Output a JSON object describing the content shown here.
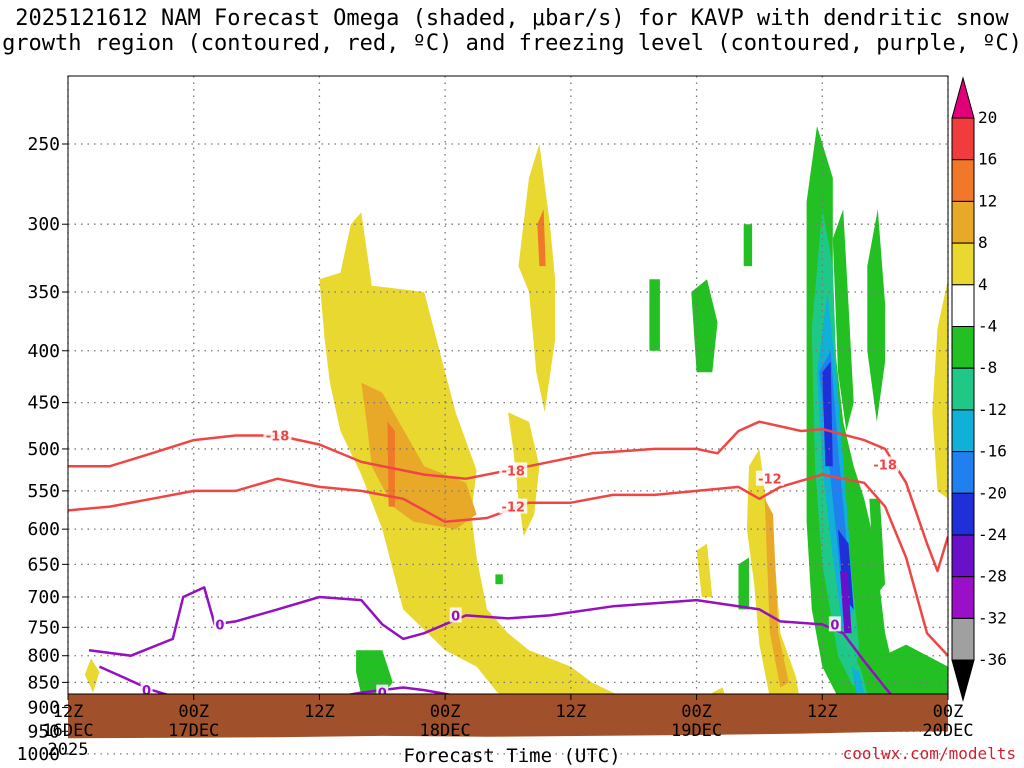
{
  "chart_data": {
    "type": "time-height cross section",
    "title_line1": "2025121612 NAM Forecast Omega (shaded, μbar/s) for KAVP with dendritic snow",
    "title_line2": "growth region (contoured, red, ºC) and freezing level (contoured, purple, ºC)",
    "xlabel": "Forecast Time (UTC)",
    "credit": "coolwx.com/modelts",
    "x_range_hours": [
      0,
      84
    ],
    "x_ticks": [
      {
        "h": 0,
        "line1": "12Z",
        "line2": "16DEC",
        "line3": "2025"
      },
      {
        "h": 12,
        "line1": "00Z",
        "line2": "17DEC"
      },
      {
        "h": 24,
        "line1": "12Z",
        "line2": ""
      },
      {
        "h": 36,
        "line1": "00Z",
        "line2": "18DEC"
      },
      {
        "h": 48,
        "line1": "12Z",
        "line2": ""
      },
      {
        "h": 60,
        "line1": "00Z",
        "line2": "19DEC"
      },
      {
        "h": 72,
        "line1": "12Z",
        "line2": ""
      },
      {
        "h": 84,
        "line1": "00Z",
        "line2": "20DEC"
      }
    ],
    "y_ticks_hpa": [
      "250",
      "300",
      "350",
      "400",
      "450",
      "500",
      "550",
      "600",
      "650",
      "700",
      "750",
      "800",
      "850",
      "900",
      "950",
      "1000"
    ],
    "y_range_hpa": [
      200,
      1050
    ],
    "colorbar_ticks": [
      "20",
      "16",
      "12",
      "8",
      "4",
      "-4",
      "-8",
      "-12",
      "-16",
      "-20",
      "-24",
      "-28",
      "-32",
      "-36"
    ],
    "colorbar_colors": [
      "#e2007a",
      "#f03c3c",
      "#f07828",
      "#e8a828",
      "#e8d830",
      "#ffffff",
      "#22c022",
      "#20c888",
      "#10b0d8",
      "#2080f0",
      "#2030d8",
      "#6a10c8",
      "#9a10c8",
      "#a0a0a0",
      "#000000"
    ],
    "contour_labels": {
      "minus18": "-18",
      "minus12": "-12",
      "zero": "0"
    },
    "contours": {
      "red": [
        {
          "level": -18,
          "points": [
            [
              0,
              520
            ],
            [
              4,
              520
            ],
            [
              8,
              505
            ],
            [
              12,
              490
            ],
            [
              16,
              485
            ],
            [
              20,
              485
            ],
            [
              24,
              495
            ],
            [
              28,
              515
            ],
            [
              32,
              525
            ],
            [
              34,
              530
            ],
            [
              38,
              535
            ],
            [
              44,
              520
            ],
            [
              50,
              505
            ],
            [
              56,
              500
            ],
            [
              60,
              500
            ],
            [
              62,
              505
            ],
            [
              64,
              480
            ],
            [
              66,
              470
            ],
            [
              70,
              480
            ],
            [
              72,
              478
            ],
            [
              76,
              490
            ],
            [
              78,
              500
            ],
            [
              80,
              540
            ],
            [
              82,
              620
            ],
            [
              83,
              660
            ],
            [
              84,
              610
            ]
          ]
        },
        {
          "level": -12,
          "points": [
            [
              0,
              575
            ],
            [
              4,
              570
            ],
            [
              8,
              560
            ],
            [
              12,
              550
            ],
            [
              16,
              550
            ],
            [
              20,
              535
            ],
            [
              24,
              545
            ],
            [
              28,
              550
            ],
            [
              32,
              560
            ],
            [
              36,
              590
            ],
            [
              40,
              585
            ],
            [
              44,
              565
            ],
            [
              48,
              565
            ],
            [
              52,
              555
            ],
            [
              56,
              555
            ],
            [
              60,
              550
            ],
            [
              64,
              545
            ],
            [
              66,
              560
            ],
            [
              68,
              545
            ],
            [
              72,
              530
            ],
            [
              76,
              540
            ],
            [
              78,
              570
            ],
            [
              80,
              640
            ],
            [
              82,
              760
            ],
            [
              84,
              800
            ]
          ]
        }
      ],
      "purple": [
        {
          "level": 0,
          "points": [
            [
              2,
              790
            ],
            [
              6,
              800
            ],
            [
              10,
              770
            ],
            [
              11,
              700
            ],
            [
              13,
              685
            ],
            [
              14,
              745
            ],
            [
              16,
              740
            ],
            [
              20,
              720
            ],
            [
              24,
              700
            ],
            [
              28,
              705
            ],
            [
              30,
              745
            ],
            [
              32,
              770
            ],
            [
              34,
              760
            ],
            [
              38,
              730
            ],
            [
              42,
              735
            ],
            [
              46,
              730
            ],
            [
              52,
              715
            ],
            [
              56,
              710
            ],
            [
              60,
              705
            ],
            [
              66,
              720
            ],
            [
              68,
              740
            ],
            [
              72,
              745
            ],
            [
              74,
              760
            ],
            [
              76,
              810
            ],
            [
              78,
              860
            ],
            [
              80,
              910
            ],
            [
              82,
              940
            ]
          ]
        },
        {
          "level": 0,
          "points": [
            [
              3,
              820
            ],
            [
              8,
              865
            ],
            [
              12,
              890
            ],
            [
              16,
              895
            ],
            [
              20,
              890
            ],
            [
              24,
              885
            ],
            [
              28,
              870
            ],
            [
              32,
              860
            ],
            [
              34,
              865
            ],
            [
              38,
              880
            ],
            [
              40,
              890
            ],
            [
              42,
              900
            ],
            [
              44,
              925
            ],
            [
              46,
              945
            ],
            [
              48,
              960
            ],
            [
              50,
              955
            ],
            [
              52,
              945
            ],
            [
              54,
              940
            ],
            [
              55,
              950
            ],
            [
              53,
              960
            ]
          ]
        }
      ]
    }
  }
}
